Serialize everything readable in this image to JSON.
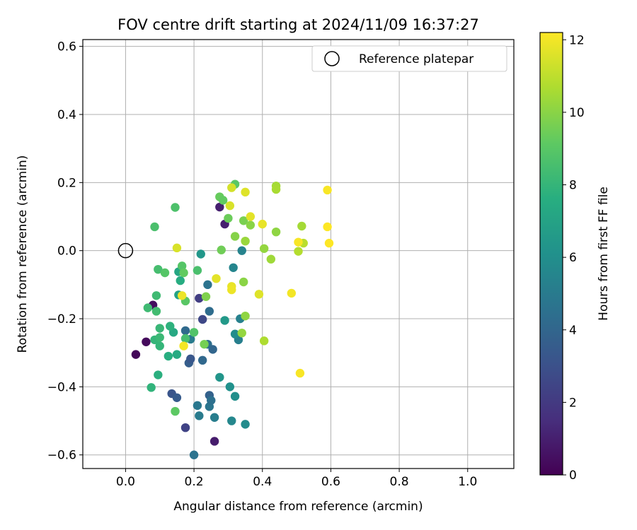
{
  "chart_data": {
    "type": "scatter",
    "title": "FOV centre drift starting at 2024/11/09 16:37:27",
    "xlabel": "Angular distance from reference (arcmin)",
    "ylabel": "Rotation from reference (arcmin)",
    "xlim": [
      -0.125,
      1.135
    ],
    "ylim": [
      -0.64,
      0.62
    ],
    "xticks": [
      0.0,
      0.2,
      0.4,
      0.6,
      0.8,
      1.0
    ],
    "xtick_labels": [
      "0.0",
      "0.2",
      "0.4",
      "0.6",
      "0.8",
      "1.0"
    ],
    "yticks": [
      -0.6,
      -0.4,
      -0.2,
      0.0,
      0.2,
      0.4,
      0.6
    ],
    "ytick_labels": [
      "−0.6",
      "−0.4",
      "−0.2",
      "0.0",
      "0.2",
      "0.4",
      "0.6"
    ],
    "grid": true,
    "legend": {
      "position": "top-right",
      "entries": [
        "Reference platepar"
      ]
    },
    "reference_point": {
      "x": 0.0,
      "y": 0.0
    },
    "colorbar": {
      "label": "Hours from first FF file",
      "colormap": "viridis",
      "range": [
        0,
        12.2
      ],
      "ticks": [
        0,
        2,
        4,
        6,
        8,
        10,
        12
      ],
      "tick_labels": [
        "0",
        "2",
        "4",
        "6",
        "8",
        "10",
        "12"
      ]
    },
    "points": [
      {
        "x": 0.03,
        "y": -0.305,
        "c": 0.2
      },
      {
        "x": 0.06,
        "y": -0.268,
        "c": 0.3
      },
      {
        "x": 0.08,
        "y": -0.16,
        "c": 0.4
      },
      {
        "x": 0.26,
        "y": -0.56,
        "c": 0.9
      },
      {
        "x": 0.275,
        "y": 0.128,
        "c": 1.0
      },
      {
        "x": 0.29,
        "y": 0.078,
        "c": 1.0
      },
      {
        "x": 0.175,
        "y": -0.52,
        "c": 2.4
      },
      {
        "x": 0.215,
        "y": -0.14,
        "c": 2.2
      },
      {
        "x": 0.225,
        "y": -0.202,
        "c": 2.6
      },
      {
        "x": 0.135,
        "y": -0.42,
        "c": 3.2
      },
      {
        "x": 0.15,
        "y": -0.432,
        "c": 3.5
      },
      {
        "x": 0.185,
        "y": -0.33,
        "c": 3.6
      },
      {
        "x": 0.19,
        "y": -0.318,
        "c": 3.3
      },
      {
        "x": 0.245,
        "y": -0.425,
        "c": 3.8
      },
      {
        "x": 0.175,
        "y": -0.235,
        "c": 4.2
      },
      {
        "x": 0.225,
        "y": -0.322,
        "c": 4.1
      },
      {
        "x": 0.24,
        "y": -0.275,
        "c": 4.4
      },
      {
        "x": 0.245,
        "y": -0.178,
        "c": 4.3
      },
      {
        "x": 0.255,
        "y": -0.29,
        "c": 4.0
      },
      {
        "x": 0.24,
        "y": -0.1,
        "c": 4.6
      },
      {
        "x": 0.21,
        "y": -0.455,
        "c": 4.8
      },
      {
        "x": 0.245,
        "y": -0.458,
        "c": 4.7
      },
      {
        "x": 0.25,
        "y": -0.44,
        "c": 4.5
      },
      {
        "x": 0.2,
        "y": -0.6,
        "c": 4.6
      },
      {
        "x": 0.215,
        "y": -0.485,
        "c": 5.0
      },
      {
        "x": 0.26,
        "y": -0.49,
        "c": 5.1
      },
      {
        "x": 0.19,
        "y": -0.26,
        "c": 5.0
      },
      {
        "x": 0.33,
        "y": -0.262,
        "c": 5.2
      },
      {
        "x": 0.335,
        "y": -0.2,
        "c": 5.3
      },
      {
        "x": 0.34,
        "y": 0.0,
        "c": 5.4
      },
      {
        "x": 0.315,
        "y": -0.05,
        "c": 5.5
      },
      {
        "x": 0.31,
        "y": -0.5,
        "c": 5.6
      },
      {
        "x": 0.35,
        "y": -0.51,
        "c": 5.8
      },
      {
        "x": 0.305,
        "y": -0.4,
        "c": 6.1
      },
      {
        "x": 0.32,
        "y": -0.428,
        "c": 6.0
      },
      {
        "x": 0.32,
        "y": -0.245,
        "c": 5.9
      },
      {
        "x": 0.275,
        "y": -0.372,
        "c": 6.3
      },
      {
        "x": 0.22,
        "y": -0.01,
        "c": 6.4
      },
      {
        "x": 0.29,
        "y": -0.205,
        "c": 6.5
      },
      {
        "x": 0.155,
        "y": -0.062,
        "c": 7.2
      },
      {
        "x": 0.155,
        "y": -0.13,
        "c": 7.0
      },
      {
        "x": 0.16,
        "y": -0.088,
        "c": 7.5
      },
      {
        "x": 0.14,
        "y": -0.24,
        "c": 7.3
      },
      {
        "x": 0.15,
        "y": -0.305,
        "c": 7.4
      },
      {
        "x": 0.125,
        "y": -0.31,
        "c": 7.6
      },
      {
        "x": 0.13,
        "y": -0.222,
        "c": 7.8
      },
      {
        "x": 0.095,
        "y": -0.365,
        "c": 7.7
      },
      {
        "x": 0.075,
        "y": -0.402,
        "c": 7.9
      },
      {
        "x": 0.085,
        "y": -0.262,
        "c": 8.0
      },
      {
        "x": 0.1,
        "y": -0.228,
        "c": 8.1
      },
      {
        "x": 0.1,
        "y": -0.255,
        "c": 8.2
      },
      {
        "x": 0.1,
        "y": -0.28,
        "c": 8.0
      },
      {
        "x": 0.065,
        "y": -0.168,
        "c": 8.3
      },
      {
        "x": 0.09,
        "y": -0.132,
        "c": 8.3
      },
      {
        "x": 0.09,
        "y": -0.178,
        "c": 8.4
      },
      {
        "x": 0.095,
        "y": -0.055,
        "c": 8.5
      },
      {
        "x": 0.085,
        "y": 0.07,
        "c": 8.6
      },
      {
        "x": 0.145,
        "y": 0.127,
        "c": 8.7
      },
      {
        "x": 0.2,
        "y": -0.24,
        "c": 8.8
      },
      {
        "x": 0.175,
        "y": -0.258,
        "c": 8.5
      },
      {
        "x": 0.21,
        "y": -0.058,
        "c": 8.6
      },
      {
        "x": 0.115,
        "y": -0.065,
        "c": 8.9
      },
      {
        "x": 0.165,
        "y": -0.045,
        "c": 8.9
      },
      {
        "x": 0.175,
        "y": -0.148,
        "c": 9.0
      },
      {
        "x": 0.145,
        "y": -0.472,
        "c": 9.1
      },
      {
        "x": 0.17,
        "y": -0.065,
        "c": 9.2
      },
      {
        "x": 0.275,
        "y": 0.158,
        "c": 9.3
      },
      {
        "x": 0.32,
        "y": 0.195,
        "c": 9.0
      },
      {
        "x": 0.285,
        "y": 0.148,
        "c": 9.2
      },
      {
        "x": 0.28,
        "y": 0.002,
        "c": 9.5
      },
      {
        "x": 0.3,
        "y": 0.095,
        "c": 9.4
      },
      {
        "x": 0.23,
        "y": -0.275,
        "c": 9.6
      },
      {
        "x": 0.235,
        "y": -0.135,
        "c": 9.8
      },
      {
        "x": 0.345,
        "y": 0.088,
        "c": 9.7
      },
      {
        "x": 0.32,
        "y": 0.042,
        "c": 9.9
      },
      {
        "x": 0.345,
        "y": -0.092,
        "c": 10.0
      },
      {
        "x": 0.35,
        "y": -0.192,
        "c": 10.1
      },
      {
        "x": 0.34,
        "y": -0.242,
        "c": 10.2
      },
      {
        "x": 0.365,
        "y": 0.075,
        "c": 10.0
      },
      {
        "x": 0.35,
        "y": 0.028,
        "c": 10.3
      },
      {
        "x": 0.405,
        "y": 0.006,
        "c": 10.2
      },
      {
        "x": 0.425,
        "y": -0.025,
        "c": 10.4
      },
      {
        "x": 0.44,
        "y": 0.055,
        "c": 10.1
      },
      {
        "x": 0.44,
        "y": 0.19,
        "c": 10.5
      },
      {
        "x": 0.44,
        "y": 0.18,
        "c": 10.6
      },
      {
        "x": 0.405,
        "y": -0.265,
        "c": 10.7
      },
      {
        "x": 0.505,
        "y": -0.002,
        "c": 10.8
      },
      {
        "x": 0.515,
        "y": 0.072,
        "c": 10.5
      },
      {
        "x": 0.52,
        "y": 0.022,
        "c": 10.9
      },
      {
        "x": 0.31,
        "y": 0.185,
        "c": 11.4
      },
      {
        "x": 0.305,
        "y": 0.132,
        "c": 11.5
      },
      {
        "x": 0.35,
        "y": 0.172,
        "c": 11.6
      },
      {
        "x": 0.365,
        "y": 0.1,
        "c": 11.7
      },
      {
        "x": 0.4,
        "y": 0.078,
        "c": 11.8
      },
      {
        "x": 0.39,
        "y": -0.128,
        "c": 11.6
      },
      {
        "x": 0.31,
        "y": -0.105,
        "c": 11.8
      },
      {
        "x": 0.31,
        "y": -0.115,
        "c": 11.9
      },
      {
        "x": 0.265,
        "y": -0.082,
        "c": 11.7
      },
      {
        "x": 0.15,
        "y": 0.008,
        "c": 11.5
      },
      {
        "x": 0.165,
        "y": -0.132,
        "c": 11.9
      },
      {
        "x": 0.17,
        "y": -0.28,
        "c": 12.0
      },
      {
        "x": 0.485,
        "y": -0.125,
        "c": 12.0
      },
      {
        "x": 0.51,
        "y": -0.36,
        "c": 12.1
      },
      {
        "x": 0.505,
        "y": 0.025,
        "c": 12.1
      },
      {
        "x": 0.59,
        "y": 0.178,
        "c": 12.1
      },
      {
        "x": 0.59,
        "y": 0.07,
        "c": 12.2
      },
      {
        "x": 0.595,
        "y": 0.022,
        "c": 12.2
      }
    ]
  }
}
